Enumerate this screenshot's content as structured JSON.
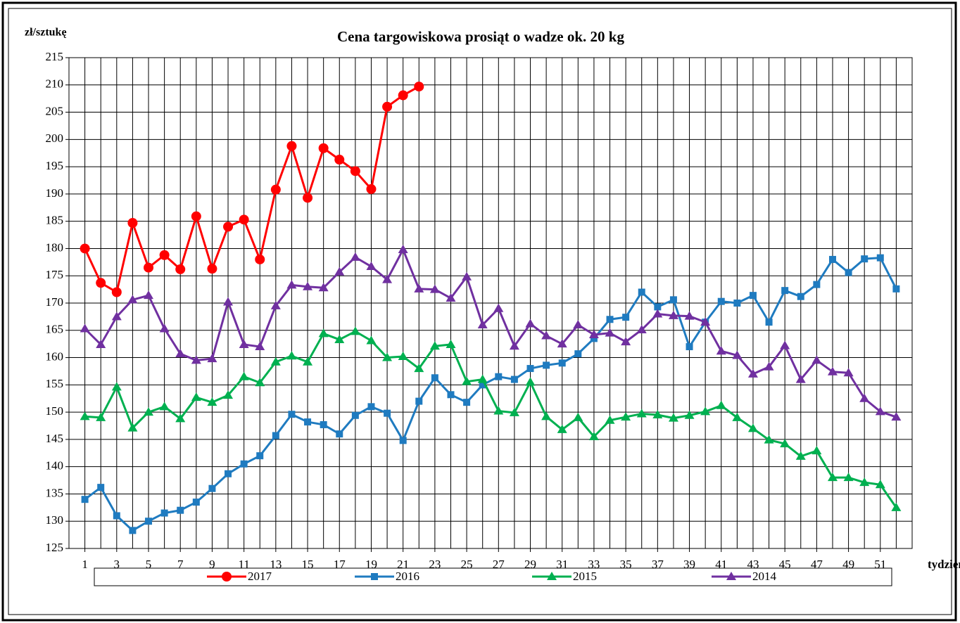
{
  "chart_data": {
    "type": "line",
    "title": "Cena targowiskowa prosiąt o wadze ok. 20 kg",
    "y_label": "zł/sztukę",
    "x_label": "tydzień",
    "x": [
      1,
      2,
      3,
      4,
      5,
      6,
      7,
      8,
      9,
      10,
      11,
      12,
      13,
      14,
      15,
      16,
      17,
      18,
      19,
      20,
      21,
      22,
      23,
      24,
      25,
      26,
      27,
      28,
      29,
      30,
      31,
      32,
      33,
      34,
      35,
      36,
      37,
      38,
      39,
      40,
      41,
      42,
      43,
      44,
      45,
      46,
      47,
      48,
      49,
      50,
      51,
      52
    ],
    "xlim": [
      0,
      53
    ],
    "xticks": [
      1,
      3,
      5,
      7,
      9,
      11,
      13,
      15,
      17,
      19,
      21,
      23,
      25,
      27,
      29,
      31,
      33,
      35,
      37,
      39,
      41,
      43,
      45,
      47,
      49,
      51
    ],
    "ylim": [
      125,
      215
    ],
    "yticks": [
      125,
      130,
      135,
      140,
      145,
      150,
      155,
      160,
      165,
      170,
      175,
      180,
      185,
      190,
      195,
      200,
      205,
      210,
      215
    ],
    "grid": true,
    "legend": "bottom",
    "series": [
      {
        "name": "2017",
        "color": "#ff0000",
        "marker": "circle",
        "values": [
          180,
          173.7,
          172,
          184.7,
          176.5,
          178.8,
          176.2,
          185.9,
          176.3,
          184,
          185.3,
          178,
          190.8,
          198.8,
          189.3,
          198.4,
          196.3,
          194.2,
          190.9,
          206,
          208.1,
          209.7,
          null,
          null,
          null,
          null,
          null,
          null,
          null,
          null,
          null,
          null,
          null,
          null,
          null,
          null,
          null,
          null,
          null,
          null,
          null,
          null,
          null,
          null,
          null,
          null,
          null,
          null,
          null,
          null,
          null,
          null
        ]
      },
      {
        "name": "2016",
        "color": "#1f7bc0",
        "marker": "square",
        "values": [
          134,
          136.2,
          131,
          128.3,
          130,
          131.5,
          132,
          133.5,
          136,
          138.7,
          140.5,
          142,
          145.7,
          149.6,
          148.2,
          147.7,
          146,
          149.4,
          151,
          149.8,
          144.8,
          152,
          156.3,
          153.2,
          151.8,
          155,
          156.5,
          156,
          158,
          158.6,
          159,
          160.7,
          163.5,
          167,
          167.4,
          172,
          169.3,
          170.6,
          162,
          166.5,
          170.3,
          170,
          171.4,
          166.5,
          172.3,
          171.2,
          173.4,
          178,
          175.6,
          178.1,
          178.3,
          172.6
        ]
      },
      {
        "name": "2015",
        "color": "#00b050",
        "marker": "triangle",
        "values": [
          149.2,
          149,
          154.6,
          147.1,
          150,
          151,
          148.8,
          152.7,
          151.8,
          153.1,
          156.5,
          155.4,
          159.2,
          160.3,
          159.2,
          164.4,
          163.3,
          164.8,
          163.1,
          160,
          160.2,
          158,
          162.1,
          162.4,
          155.6,
          156,
          150.2,
          149.9,
          155.5,
          149.2,
          146.8,
          149,
          145.5,
          148.5,
          149.1,
          149.7,
          149.5,
          148.9,
          149.4,
          150.1,
          151.2,
          149,
          147,
          144.9,
          144.2,
          141.9,
          142.9,
          138,
          138,
          137.1,
          136.7,
          132.5
        ]
      },
      {
        "name": "2014",
        "color": "#7030a0",
        "marker": "triangle",
        "values": [
          165.3,
          162.4,
          167.5,
          170.6,
          171.4,
          165.3,
          160.7,
          159.5,
          159.8,
          170.2,
          162.4,
          162,
          169.5,
          173.3,
          173,
          172.8,
          175.7,
          178.4,
          176.7,
          174.3,
          179.8,
          172.6,
          172.5,
          170.9,
          174.8,
          166,
          169,
          162.1,
          166.2,
          164,
          162.5,
          166,
          164.2,
          164.5,
          162.9,
          165.1,
          168,
          167.7,
          167.6,
          166.5,
          161.2,
          160.4,
          157,
          158.3,
          162.2,
          156,
          159.5,
          157.4,
          157.2,
          152.5,
          150.1,
          149.1
        ]
      }
    ]
  }
}
